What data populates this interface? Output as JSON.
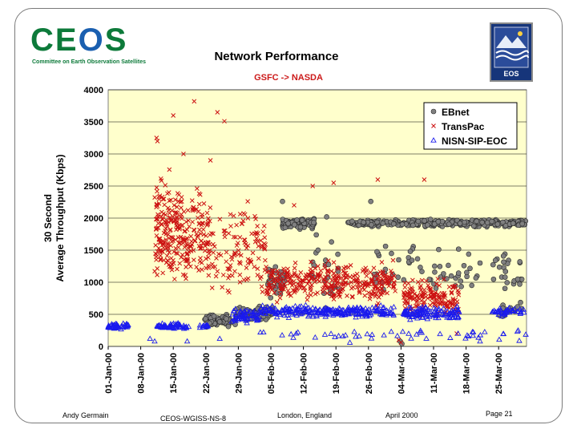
{
  "header": {
    "logo_left_text": "CEOS",
    "logo_left_subtitle": "Committee on Earth Observation Satellites",
    "logo_right_text": "EOS",
    "title": "Network Performance",
    "subtitle": "GSFC -> NASDA"
  },
  "footer": {
    "author": "Andy Germain",
    "doc_id": "CEOS-WGISS-NS-8",
    "location": "London, England",
    "date": "April 2000",
    "page": "Page 21"
  },
  "colors": {
    "plot_background": "#ffffcc",
    "ebnet": "#808080",
    "transpac": "#cc1111",
    "nisn": "#1a1aee",
    "subtitle": "#cc1a1a"
  },
  "chart_data": {
    "type": "scatter",
    "title": "Network Performance",
    "subtitle": "GSFC -> NASDA",
    "ylabel_line1": "30 Second",
    "ylabel_line2": "Average Throughput (Kbps)",
    "xlabel": "",
    "ylim": [
      0,
      4000
    ],
    "yticks": [
      "0",
      "500",
      "1000",
      "1500",
      "2000",
      "2500",
      "3000",
      "3500",
      "4000"
    ],
    "xlim_days": [
      0,
      90
    ],
    "xticks": [
      {
        "label": "01-Jan-00",
        "day": 0
      },
      {
        "label": "08-Jan-00",
        "day": 7
      },
      {
        "label": "15-Jan-00",
        "day": 14
      },
      {
        "label": "22-Jan-00",
        "day": 21
      },
      {
        "label": "29-Jan-00",
        "day": 28
      },
      {
        "label": "05-Feb-00",
        "day": 35
      },
      {
        "label": "12-Feb-00",
        "day": 42
      },
      {
        "label": "19-Feb-00",
        "day": 49
      },
      {
        "label": "26-Feb-00",
        "day": 56
      },
      {
        "label": "04-Mar-00",
        "day": 63
      },
      {
        "label": "11-Mar-00",
        "day": 70
      },
      {
        "label": "18-Mar-00",
        "day": 77
      },
      {
        "label": "25-Mar-00",
        "day": 84
      }
    ],
    "legend_position": "top-right",
    "series": [
      {
        "name": "EBnet",
        "marker": "circle",
        "segments": [
          {
            "day_start": 20.5,
            "day_end": 27.5,
            "center": 400,
            "spread": 130,
            "count": 70
          },
          {
            "day_start": 27.5,
            "day_end": 35.5,
            "center": 520,
            "spread": 150,
            "count": 60
          },
          {
            "day_start": 34.0,
            "day_end": 38.0,
            "center": 1000,
            "spread": 300,
            "count": 40
          },
          {
            "day_start": 37.5,
            "day_end": 44.5,
            "center": 1920,
            "spread": 110,
            "count": 110
          },
          {
            "day_start": 43.0,
            "day_end": 50.0,
            "center": 1200,
            "spread": 700,
            "count": 25
          },
          {
            "day_start": 51.5,
            "day_end": 90.0,
            "center": 1920,
            "spread": 70,
            "count": 330
          },
          {
            "day_start": 57.0,
            "day_end": 90.0,
            "center": 1150,
            "spread": 550,
            "count": 80
          },
          {
            "day_start": 84.0,
            "day_end": 89.0,
            "center": 550,
            "spread": 200,
            "count": 15
          }
        ],
        "outliers": [
          [
            37.5,
            2260
          ],
          [
            47.0,
            2020
          ],
          [
            56.5,
            2260
          ],
          [
            62.5,
            1350
          ],
          [
            65.0,
            1480
          ],
          [
            80.0,
            1300
          ],
          [
            62.8,
            80
          ],
          [
            63.2,
            40
          ]
        ]
      },
      {
        "name": "TransPac",
        "marker": "x",
        "segments": [
          {
            "day_start": 10.0,
            "day_end": 16.0,
            "center": 1800,
            "spread": 1100,
            "count": 170
          },
          {
            "day_start": 16.0,
            "day_end": 22.0,
            "center": 1700,
            "spread": 900,
            "count": 110
          },
          {
            "day_start": 21.0,
            "day_end": 27.0,
            "center": 1450,
            "spread": 1000,
            "count": 45
          },
          {
            "day_start": 27.0,
            "day_end": 34.0,
            "center": 1600,
            "spread": 1050,
            "count": 75
          },
          {
            "day_start": 34.0,
            "day_end": 62.0,
            "center": 1000,
            "spread": 420,
            "count": 340
          },
          {
            "day_start": 63.5,
            "day_end": 75.5,
            "center": 750,
            "spread": 380,
            "count": 160
          }
        ],
        "outliers": [
          [
            10.4,
            3250
          ],
          [
            10.6,
            3200
          ],
          [
            14.0,
            3600
          ],
          [
            16.2,
            3000
          ],
          [
            18.5,
            3820
          ],
          [
            23.5,
            3650
          ],
          [
            25.0,
            3510
          ],
          [
            22.0,
            2900
          ],
          [
            44.0,
            2500
          ],
          [
            48.5,
            2550
          ],
          [
            58.0,
            2600
          ],
          [
            68.0,
            2600
          ],
          [
            40.0,
            2200
          ],
          [
            62.5,
            100
          ],
          [
            63.0,
            60
          ],
          [
            75.0,
            200
          ]
        ]
      },
      {
        "name": "NISN-SIP-EOC",
        "marker": "triangle",
        "segments": [
          {
            "day_start": 0.0,
            "day_end": 4.5,
            "center": 320,
            "spread": 60,
            "count": 45
          },
          {
            "day_start": 10.5,
            "day_end": 17.5,
            "center": 320,
            "spread": 60,
            "count": 55
          },
          {
            "day_start": 19.5,
            "day_end": 21.5,
            "center": 310,
            "spread": 60,
            "count": 15
          },
          {
            "day_start": 26.5,
            "day_end": 32.5,
            "center": 480,
            "spread": 150,
            "count": 55
          },
          {
            "day_start": 32.5,
            "day_end": 61.5,
            "center": 540,
            "spread": 120,
            "count": 240
          },
          {
            "day_start": 63.5,
            "day_end": 75.5,
            "center": 520,
            "spread": 130,
            "count": 110
          },
          {
            "day_start": 82.5,
            "day_end": 89.5,
            "center": 540,
            "spread": 100,
            "count": 40
          },
          {
            "day_start": 32.5,
            "day_end": 90.0,
            "center": 180,
            "spread": 130,
            "count": 50
          }
        ],
        "outliers": [
          [
            9.0,
            120
          ],
          [
            10.0,
            80
          ],
          [
            17.0,
            80
          ],
          [
            24.0,
            120
          ],
          [
            52.0,
            60
          ],
          [
            80.0,
            80
          ]
        ]
      }
    ]
  }
}
